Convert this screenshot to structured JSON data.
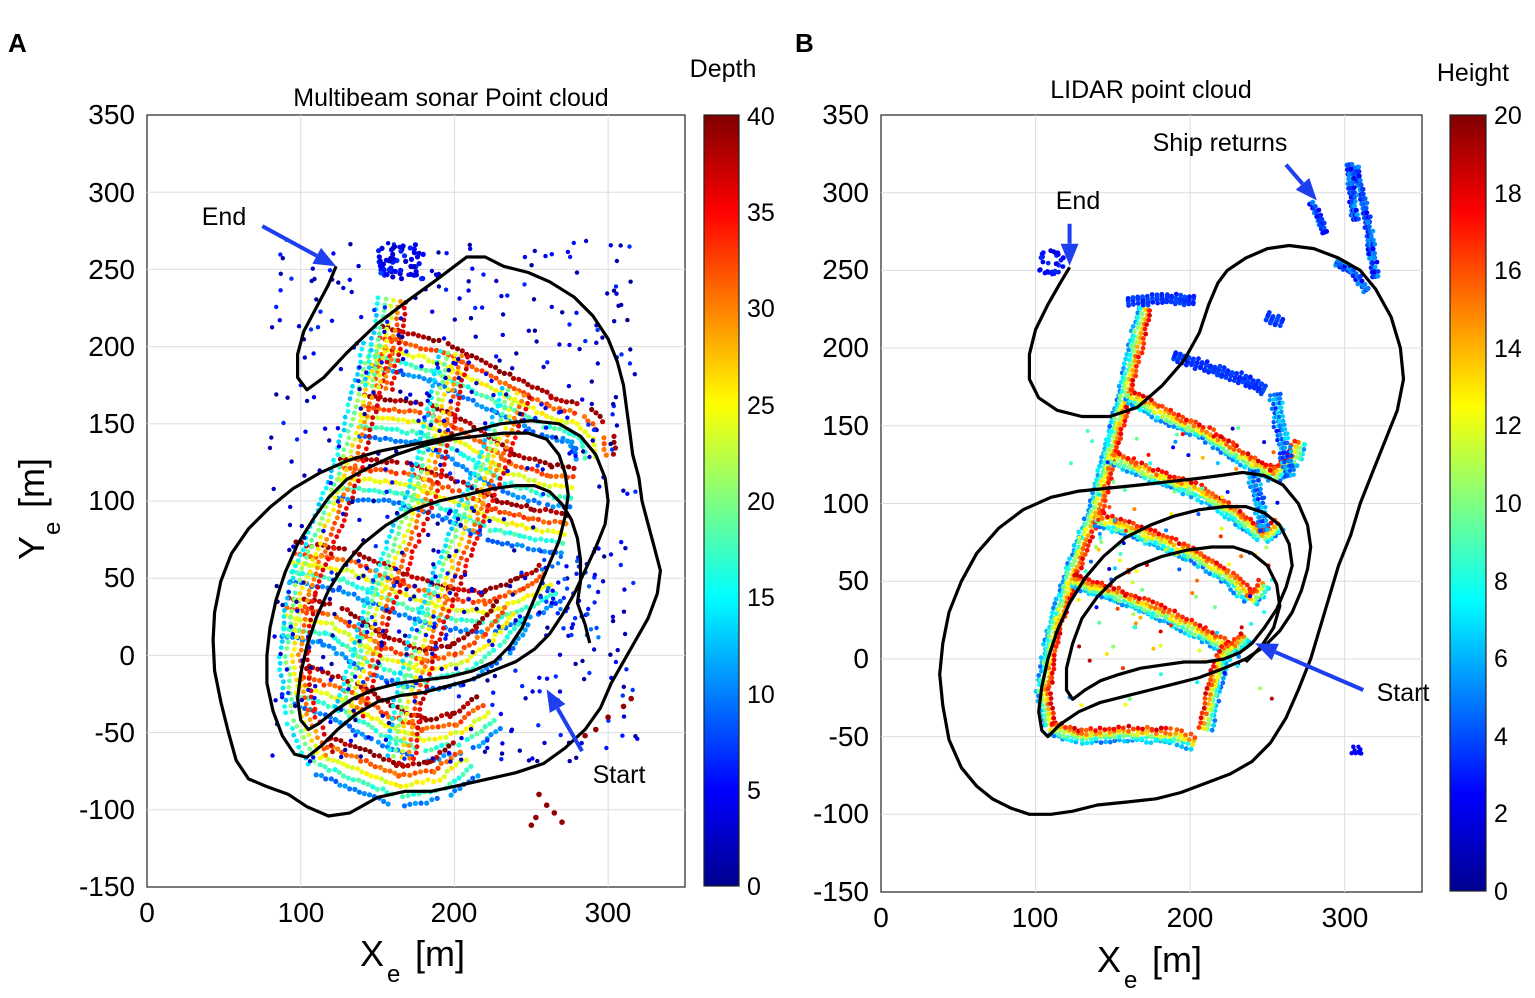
{
  "colors": {
    "track": "#000000",
    "arrow": "#1e3ff0",
    "axis": "#222222",
    "grid": "#dddddd",
    "jet": [
      "#00008f",
      "#0000ff",
      "#0080ff",
      "#00ffff",
      "#80ff80",
      "#ffff00",
      "#ff8000",
      "#ff0000",
      "#800000"
    ]
  },
  "chart_data": [
    {
      "type": "scatter",
      "panel_label": "A",
      "title": "Multibeam sonar Point cloud",
      "xlabel_main": "X",
      "xlabel_sub": "e",
      "xlabel_unit": "[m]",
      "ylabel_main": "Y",
      "ylabel_sub": "e",
      "ylabel_unit": "[m]",
      "xlim": [
        0,
        350
      ],
      "ylim": [
        -150,
        350
      ],
      "xticks": [
        "0",
        "100",
        "200",
        "300"
      ],
      "yticks": [
        "-150",
        "-100",
        "-50",
        "0",
        "50",
        "100",
        "150",
        "200",
        "250",
        "300",
        "350"
      ],
      "colorbar": {
        "title": "Depth",
        "range": [
          0,
          40
        ],
        "ticks": [
          "0",
          "5",
          "10",
          "15",
          "20",
          "25",
          "30",
          "35",
          "40"
        ]
      },
      "annotations": [
        {
          "text": "End",
          "tail": [
            75,
            278
          ],
          "head": [
            123,
            252
          ]
        },
        {
          "text": "Start",
          "tail": [
            283,
            -62
          ],
          "head": [
            260,
            -22
          ]
        }
      ],
      "track": [
        [
          123,
          252
        ],
        [
          118,
          240
        ],
        [
          110,
          225
        ],
        [
          102,
          210
        ],
        [
          98,
          195
        ],
        [
          98,
          180
        ],
        [
          104,
          172
        ],
        [
          115,
          180
        ],
        [
          130,
          196
        ],
        [
          150,
          215
        ],
        [
          170,
          230
        ],
        [
          188,
          243
        ],
        [
          200,
          252
        ],
        [
          208,
          258
        ],
        [
          220,
          258
        ],
        [
          232,
          252
        ],
        [
          248,
          248
        ],
        [
          262,
          242
        ],
        [
          278,
          232
        ],
        [
          290,
          220
        ],
        [
          300,
          205
        ],
        [
          306,
          190
        ],
        [
          310,
          175
        ],
        [
          312,
          160
        ],
        [
          314,
          145
        ],
        [
          316,
          130
        ],
        [
          320,
          115
        ],
        [
          322,
          100
        ],
        [
          326,
          85
        ],
        [
          330,
          70
        ],
        [
          334,
          55
        ],
        [
          332,
          40
        ],
        [
          326,
          24
        ],
        [
          318,
          10
        ],
        [
          310,
          -4
        ],
        [
          302,
          -18
        ],
        [
          295,
          -34
        ],
        [
          285,
          -48
        ],
        [
          272,
          -60
        ],
        [
          258,
          -70
        ],
        [
          240,
          -76
        ],
        [
          222,
          -80
        ],
        [
          204,
          -84
        ],
        [
          185,
          -88
        ],
        [
          168,
          -88
        ],
        [
          150,
          -92
        ],
        [
          132,
          -102
        ],
        [
          118,
          -104
        ],
        [
          104,
          -98
        ],
        [
          92,
          -90
        ],
        [
          78,
          -85
        ],
        [
          66,
          -80
        ],
        [
          58,
          -68
        ],
        [
          53,
          -50
        ],
        [
          48,
          -30
        ],
        [
          44,
          -10
        ],
        [
          43,
          10
        ],
        [
          44,
          28
        ],
        [
          48,
          48
        ],
        [
          55,
          66
        ],
        [
          66,
          82
        ],
        [
          80,
          96
        ],
        [
          95,
          108
        ],
        [
          112,
          118
        ],
        [
          130,
          126
        ],
        [
          150,
          132
        ],
        [
          170,
          136
        ],
        [
          190,
          140
        ],
        [
          210,
          145
        ],
        [
          230,
          150
        ],
        [
          250,
          152
        ],
        [
          268,
          150
        ],
        [
          282,
          142
        ],
        [
          292,
          130
        ],
        [
          298,
          115
        ],
        [
          300,
          100
        ],
        [
          298,
          85
        ],
        [
          292,
          70
        ],
        [
          285,
          55
        ],
        [
          278,
          40
        ],
        [
          270,
          26
        ],
        [
          262,
          14
        ],
        [
          252,
          4
        ],
        [
          240,
          -4
        ],
        [
          225,
          -10
        ],
        [
          210,
          -16
        ],
        [
          195,
          -20
        ],
        [
          180,
          -24
        ],
        [
          165,
          -26
        ],
        [
          150,
          -30
        ],
        [
          136,
          -38
        ],
        [
          124,
          -48
        ],
        [
          114,
          -58
        ],
        [
          104,
          -66
        ],
        [
          96,
          -64
        ],
        [
          88,
          -52
        ],
        [
          82,
          -36
        ],
        [
          78,
          -18
        ],
        [
          78,
          0
        ],
        [
          80,
          18
        ],
        [
          84,
          36
        ],
        [
          90,
          54
        ],
        [
          98,
          72
        ],
        [
          108,
          88
        ],
        [
          118,
          102
        ],
        [
          130,
          114
        ],
        [
          145,
          122
        ],
        [
          162,
          130
        ],
        [
          180,
          136
        ],
        [
          198,
          140
        ],
        [
          215,
          142
        ],
        [
          232,
          144
        ],
        [
          248,
          144
        ],
        [
          260,
          140
        ],
        [
          268,
          130
        ],
        [
          272,
          118
        ],
        [
          274,
          104
        ],
        [
          272,
          90
        ],
        [
          268,
          74
        ],
        [
          262,
          60
        ],
        [
          256,
          46
        ],
        [
          250,
          32
        ],
        [
          244,
          18
        ],
        [
          236,
          6
        ],
        [
          226,
          -4
        ],
        [
          212,
          -10
        ],
        [
          196,
          -14
        ],
        [
          180,
          -16
        ],
        [
          164,
          -18
        ],
        [
          148,
          -22
        ],
        [
          134,
          -28
        ],
        [
          122,
          -36
        ],
        [
          112,
          -44
        ],
        [
          105,
          -48
        ],
        [
          100,
          -42
        ],
        [
          98,
          -28
        ],
        [
          100,
          -12
        ],
        [
          104,
          6
        ],
        [
          110,
          24
        ],
        [
          118,
          42
        ],
        [
          128,
          58
        ],
        [
          140,
          72
        ],
        [
          155,
          84
        ],
        [
          172,
          94
        ],
        [
          190,
          100
        ],
        [
          208,
          104
        ],
        [
          225,
          108
        ],
        [
          240,
          110
        ],
        [
          252,
          110
        ],
        [
          262,
          106
        ],
        [
          270,
          98
        ],
        [
          276,
          88
        ],
        [
          280,
          76
        ],
        [
          282,
          62
        ],
        [
          282,
          48
        ],
        [
          280,
          34
        ],
        [
          285,
          20
        ],
        [
          288,
          8
        ]
      ]
    },
    {
      "type": "scatter",
      "panel_label": "B",
      "title": "LIDAR point cloud",
      "xlabel_main": "X",
      "xlabel_sub": "e",
      "xlabel_unit": "[m]",
      "xlim": [
        0,
        350
      ],
      "ylim": [
        -150,
        350
      ],
      "xticks": [
        "0",
        "100",
        "200",
        "300"
      ],
      "yticks": [
        "-150",
        "-100",
        "-50",
        "0",
        "50",
        "100",
        "150",
        "200",
        "250",
        "300",
        "350"
      ],
      "colorbar": {
        "title": "Height",
        "range": [
          0,
          20
        ],
        "ticks": [
          "0",
          "2",
          "4",
          "6",
          "8",
          "10",
          "12",
          "14",
          "16",
          "18",
          "20"
        ]
      },
      "annotations": [
        {
          "text": "End",
          "tail": [
            122,
            280
          ],
          "head": [
            122,
            253
          ]
        },
        {
          "text": "Ship returns",
          "tail": [
            262,
            318
          ],
          "head": [
            282,
            295
          ]
        },
        {
          "text": "Start",
          "tail": [
            312,
            -20
          ],
          "head": [
            242,
            10
          ]
        }
      ],
      "track": [
        [
          122,
          252
        ],
        [
          116,
          242
        ],
        [
          108,
          228
        ],
        [
          100,
          212
        ],
        [
          96,
          196
        ],
        [
          96,
          180
        ],
        [
          102,
          168
        ],
        [
          114,
          160
        ],
        [
          130,
          156
        ],
        [
          148,
          156
        ],
        [
          166,
          162
        ],
        [
          182,
          176
        ],
        [
          196,
          192
        ],
        [
          206,
          210
        ],
        [
          212,
          228
        ],
        [
          218,
          242
        ],
        [
          224,
          250
        ],
        [
          236,
          258
        ],
        [
          250,
          264
        ],
        [
          264,
          266
        ],
        [
          280,
          264
        ],
        [
          296,
          258
        ],
        [
          310,
          250
        ],
        [
          320,
          238
        ],
        [
          330,
          220
        ],
        [
          336,
          200
        ],
        [
          338,
          180
        ],
        [
          334,
          160
        ],
        [
          326,
          140
        ],
        [
          318,
          120
        ],
        [
          310,
          100
        ],
        [
          304,
          80
        ],
        [
          296,
          60
        ],
        [
          290,
          40
        ],
        [
          284,
          20
        ],
        [
          278,
          0
        ],
        [
          270,
          -20
        ],
        [
          262,
          -38
        ],
        [
          252,
          -54
        ],
        [
          240,
          -66
        ],
        [
          226,
          -74
        ],
        [
          210,
          -80
        ],
        [
          194,
          -86
        ],
        [
          178,
          -90
        ],
        [
          160,
          -92
        ],
        [
          140,
          -94
        ],
        [
          124,
          -98
        ],
        [
          110,
          -100
        ],
        [
          96,
          -100
        ],
        [
          84,
          -96
        ],
        [
          72,
          -90
        ],
        [
          62,
          -82
        ],
        [
          52,
          -70
        ],
        [
          44,
          -52
        ],
        [
          40,
          -30
        ],
        [
          38,
          -10
        ],
        [
          40,
          10
        ],
        [
          44,
          30
        ],
        [
          52,
          50
        ],
        [
          62,
          68
        ],
        [
          76,
          84
        ],
        [
          92,
          96
        ],
        [
          110,
          104
        ],
        [
          128,
          108
        ],
        [
          148,
          110
        ],
        [
          168,
          112
        ],
        [
          186,
          114
        ],
        [
          204,
          116
        ],
        [
          220,
          118
        ],
        [
          234,
          120
        ],
        [
          248,
          118
        ],
        [
          260,
          112
        ],
        [
          270,
          100
        ],
        [
          276,
          86
        ],
        [
          278,
          72
        ],
        [
          276,
          58
        ],
        [
          272,
          44
        ],
        [
          266,
          30
        ],
        [
          258,
          18
        ],
        [
          248,
          8
        ],
        [
          236,
          0
        ],
        [
          222,
          -6
        ],
        [
          206,
          -12
        ],
        [
          190,
          -16
        ],
        [
          174,
          -20
        ],
        [
          158,
          -24
        ],
        [
          142,
          -28
        ],
        [
          128,
          -34
        ],
        [
          116,
          -42
        ],
        [
          108,
          -50
        ],
        [
          104,
          -46
        ],
        [
          102,
          -34
        ],
        [
          104,
          -18
        ],
        [
          108,
          0
        ],
        [
          114,
          18
        ],
        [
          122,
          36
        ],
        [
          132,
          52
        ],
        [
          144,
          66
        ],
        [
          158,
          78
        ],
        [
          174,
          86
        ],
        [
          190,
          92
        ],
        [
          206,
          96
        ],
        [
          222,
          98
        ],
        [
          236,
          98
        ],
        [
          248,
          94
        ],
        [
          258,
          86
        ],
        [
          264,
          74
        ],
        [
          266,
          60
        ],
        [
          262,
          46
        ],
        [
          256,
          32
        ],
        [
          248,
          20
        ],
        [
          240,
          10
        ],
        [
          232,
          4
        ],
        [
          222,
          0
        ],
        [
          210,
          -2
        ],
        [
          196,
          -2
        ],
        [
          182,
          -4
        ],
        [
          168,
          -6
        ],
        [
          154,
          -10
        ],
        [
          142,
          -14
        ],
        [
          132,
          -20
        ],
        [
          124,
          -26
        ],
        [
          120,
          -20
        ],
        [
          120,
          -6
        ],
        [
          124,
          10
        ],
        [
          130,
          26
        ],
        [
          140,
          40
        ],
        [
          152,
          52
        ],
        [
          166,
          60
        ],
        [
          182,
          66
        ],
        [
          198,
          70
        ],
        [
          214,
          72
        ],
        [
          228,
          72
        ],
        [
          240,
          68
        ],
        [
          250,
          60
        ],
        [
          256,
          48
        ],
        [
          258,
          34
        ],
        [
          254,
          20
        ],
        [
          246,
          8
        ],
        [
          236,
          -2
        ]
      ]
    }
  ]
}
